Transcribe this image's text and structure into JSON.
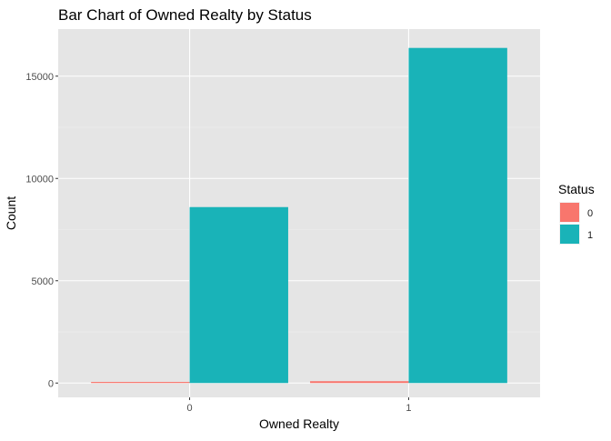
{
  "chart_data": {
    "type": "bar",
    "title": "Bar Chart of Owned Realty by Status",
    "xlabel": "Owned Realty",
    "ylabel": "Count",
    "categories": [
      "0",
      "1"
    ],
    "series": [
      {
        "name": "0",
        "values": [
          40,
          90
        ]
      },
      {
        "name": "1",
        "values": [
          8600,
          16380
        ]
      }
    ],
    "ylim": [
      -700,
      17300
    ],
    "yticks": [
      0,
      5000,
      10000,
      15000
    ],
    "yticklabels": [
      "0",
      "5000",
      "10000",
      "15000"
    ],
    "grid": true,
    "legend": {
      "title": "Status",
      "position": "right"
    },
    "colors": {
      "series": [
        "#F8766D",
        "#19B3B8"
      ],
      "panel": "#E5E5E5",
      "grid_major": "#FFFFFF",
      "grid_minor": "#F0F0F0",
      "text": "#1A1A1A",
      "tick_text": "#4D4D4D"
    }
  }
}
